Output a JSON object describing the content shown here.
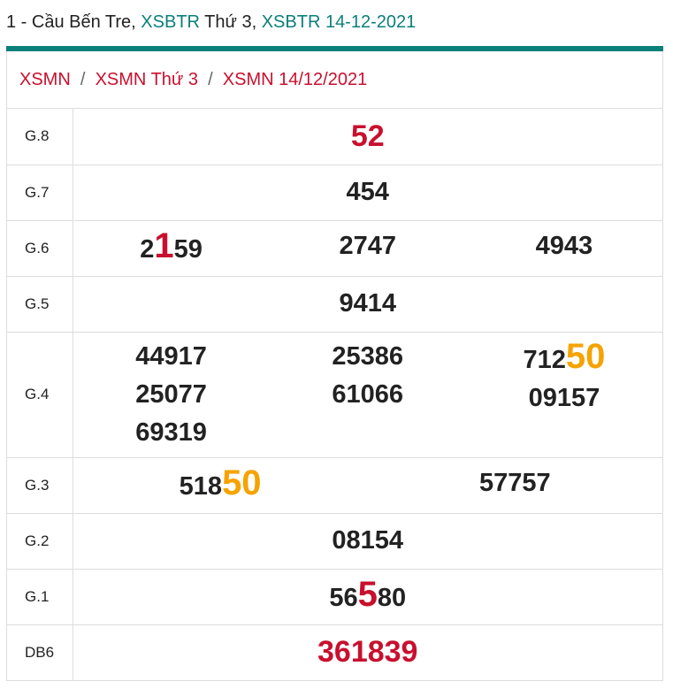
{
  "header": {
    "parts": [
      {
        "text": "1 - Cầu Bến Tre, ",
        "link": false
      },
      {
        "text": "XSBTR",
        "link": true
      },
      {
        "text": " Thứ 3, ",
        "link": false
      },
      {
        "text": "XSBTR 14-12-2021",
        "link": true
      }
    ]
  },
  "breadcrumb": [
    "XSMN",
    "XSMN Thứ 3",
    "XSMN 14/12/2021"
  ],
  "table": {
    "rows": [
      {
        "label": "G.8",
        "cells": [
          [
            {
              "color": "#c8102e",
              "size": "big",
              "parts": [
                {
                  "text": "52"
                }
              ]
            }
          ]
        ]
      },
      {
        "label": "G.7",
        "cells": [
          [
            {
              "parts": [
                {
                  "text": "454"
                }
              ]
            }
          ]
        ]
      },
      {
        "label": "G.6",
        "cells": [
          [
            {
              "parts": [
                {
                  "text": "2"
                },
                {
                  "text": "1",
                  "color": "#c8102e"
                },
                {
                  "text": "59"
                }
              ]
            }
          ],
          [
            {
              "parts": [
                {
                  "text": "2747"
                }
              ]
            }
          ],
          [
            {
              "parts": [
                {
                  "text": "4943"
                }
              ]
            }
          ]
        ]
      },
      {
        "label": "G.5",
        "cells": [
          [
            {
              "parts": [
                {
                  "text": "9414"
                }
              ]
            }
          ]
        ]
      },
      {
        "label": "G.4",
        "cells": [
          [
            {
              "parts": [
                {
                  "text": "44917"
                }
              ]
            },
            {
              "parts": [
                {
                  "text": "25077"
                }
              ]
            },
            {
              "parts": [
                {
                  "text": "69319"
                }
              ]
            }
          ],
          [
            {
              "parts": [
                {
                  "text": "25386"
                }
              ]
            },
            {
              "parts": [
                {
                  "text": "61066"
                }
              ]
            }
          ],
          [
            {
              "parts": [
                {
                  "text": "712"
                },
                {
                  "text": "50",
                  "color": "#f5a300"
                }
              ]
            },
            {
              "parts": [
                {
                  "text": "09157"
                }
              ]
            }
          ]
        ]
      },
      {
        "label": "G.3",
        "cells": [
          [
            {
              "parts": [
                {
                  "text": "518"
                },
                {
                  "text": "50",
                  "color": "#f5a300"
                }
              ]
            }
          ],
          [
            {
              "parts": [
                {
                  "text": "57757"
                }
              ]
            }
          ]
        ]
      },
      {
        "label": "G.2",
        "cells": [
          [
            {
              "parts": [
                {
                  "text": "08154"
                }
              ]
            }
          ]
        ]
      },
      {
        "label": "G.1",
        "cells": [
          [
            {
              "parts": [
                {
                  "text": "56"
                },
                {
                  "text": "5",
                  "color": "#c8102e"
                },
                {
                  "text": "80"
                }
              ]
            }
          ]
        ]
      },
      {
        "label": "DB6",
        "cells": [
          [
            {
              "color": "#c8102e",
              "size": "big",
              "parts": [
                {
                  "text": "361839"
                }
              ]
            }
          ]
        ]
      }
    ]
  }
}
